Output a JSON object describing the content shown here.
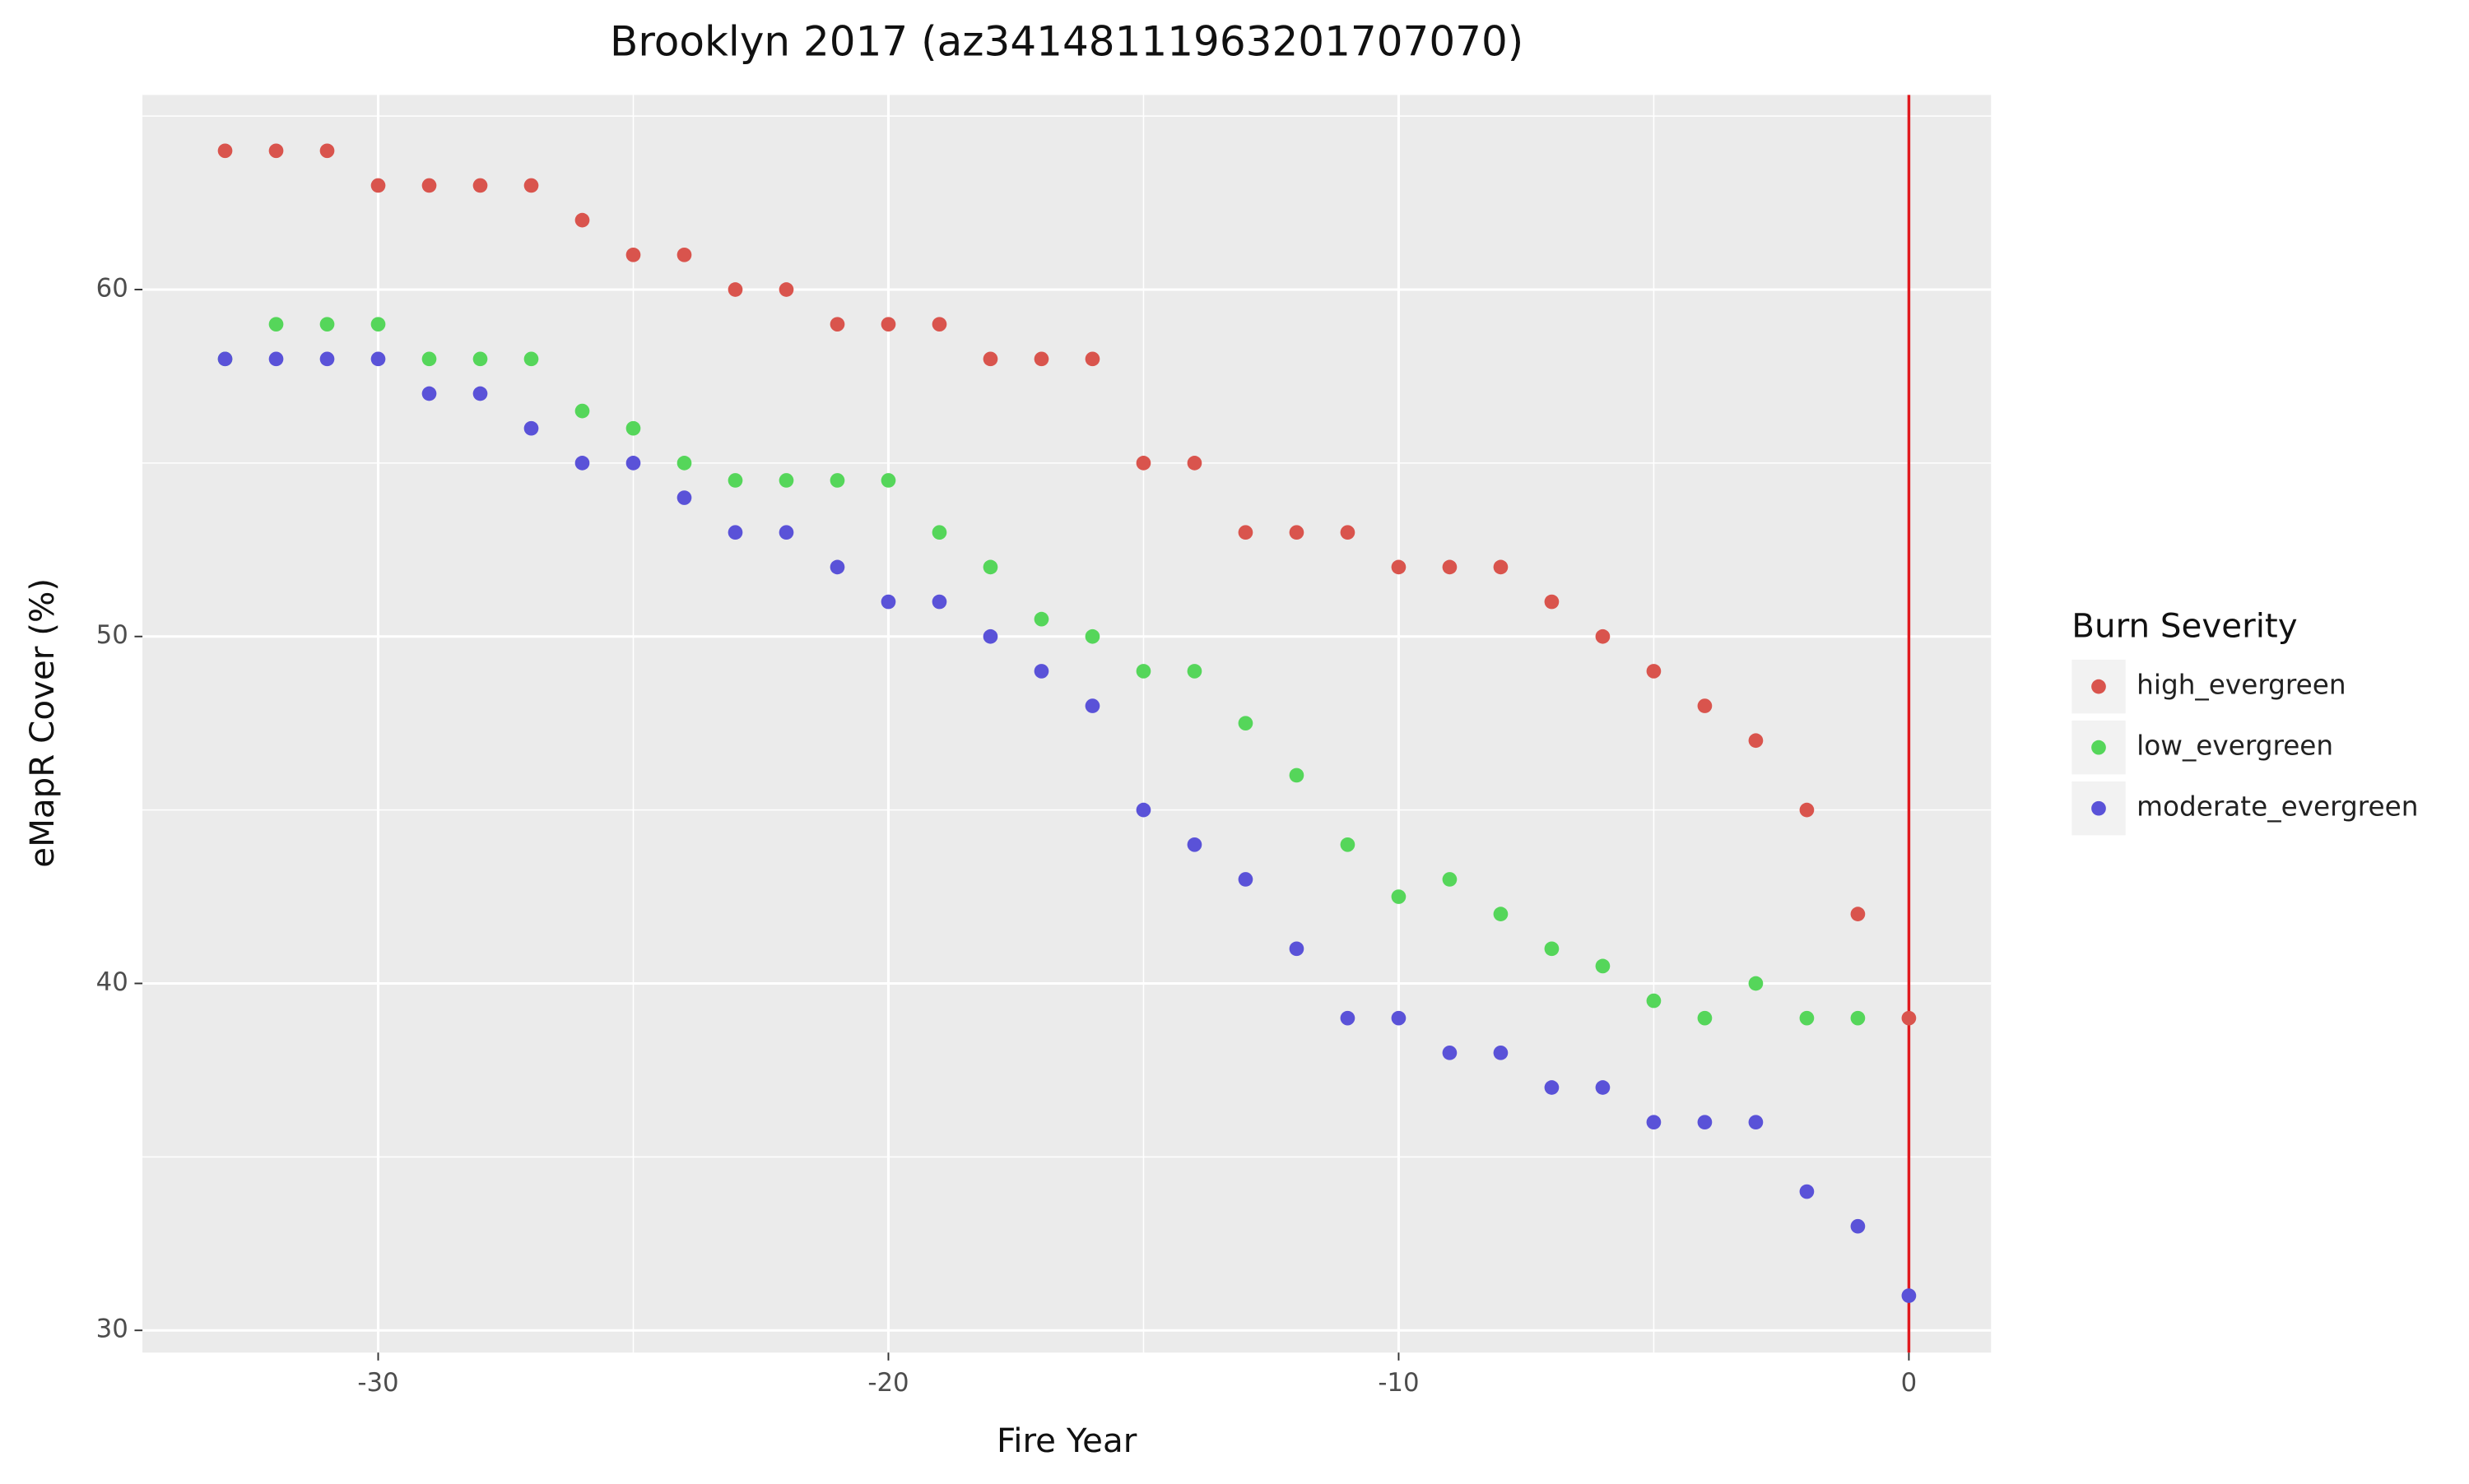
{
  "chart_data": {
    "type": "scatter",
    "title": "Brooklyn 2017 (az34148111963201707070)",
    "x_label": "Fire Year",
    "y_label": "eMapR Cover (%)",
    "legend_title": "Burn Severity",
    "x": [
      -33,
      -32,
      -31,
      -30,
      -29,
      -28,
      -27,
      -26,
      -25,
      -24,
      -23,
      -22,
      -21,
      -20,
      -19,
      -18,
      -17,
      -16,
      -15,
      -14,
      -13,
      -12,
      -11,
      -10,
      -9,
      -8,
      -7,
      -6,
      -5,
      -4,
      -3,
      -2,
      -1,
      0
    ],
    "series": [
      {
        "name": "high_evergreen",
        "color": "#d9544d",
        "values": [
          64,
          64,
          64,
          63,
          63,
          63,
          63,
          62,
          61,
          61,
          60,
          60,
          59,
          59,
          59,
          58,
          58,
          58,
          55,
          55,
          53,
          53,
          53,
          52,
          52,
          52,
          51,
          50,
          49,
          48,
          47,
          45,
          42,
          39
        ]
      },
      {
        "name": "low_evergreen",
        "color": "#55d65a",
        "values": [
          58,
          59,
          59,
          59,
          58,
          58,
          58,
          56.5,
          56,
          55,
          54.5,
          54.5,
          54.5,
          54.5,
          53,
          52,
          50.5,
          50,
          49,
          49,
          47.5,
          46,
          44,
          42.5,
          43,
          42,
          41,
          40.5,
          39.5,
          39,
          40,
          39,
          39,
          null
        ]
      },
      {
        "name": "moderate_evergreen",
        "color": "#5a52d8",
        "values": [
          58,
          58,
          58,
          58,
          57,
          57,
          56,
          55,
          55,
          54,
          53,
          53,
          52,
          51,
          51,
          50,
          49,
          48,
          45,
          44,
          43,
          41,
          39,
          39,
          38,
          38,
          37,
          37,
          36,
          36,
          36,
          34,
          33,
          31
        ]
      }
    ],
    "xlim": [
      -34.62,
      1.61
    ],
    "ylim": [
      29.36,
      65.61
    ],
    "xticks": [
      -30,
      -20,
      -10,
      0
    ],
    "yticks": [
      30,
      40,
      50,
      60
    ],
    "x_minor_ticks": [
      -25,
      -15,
      -5
    ],
    "y_minor_ticks": [
      35,
      45,
      55,
      65
    ],
    "vline": 0,
    "vline_color": "#e0191e",
    "grid": true,
    "legend": "right"
  }
}
